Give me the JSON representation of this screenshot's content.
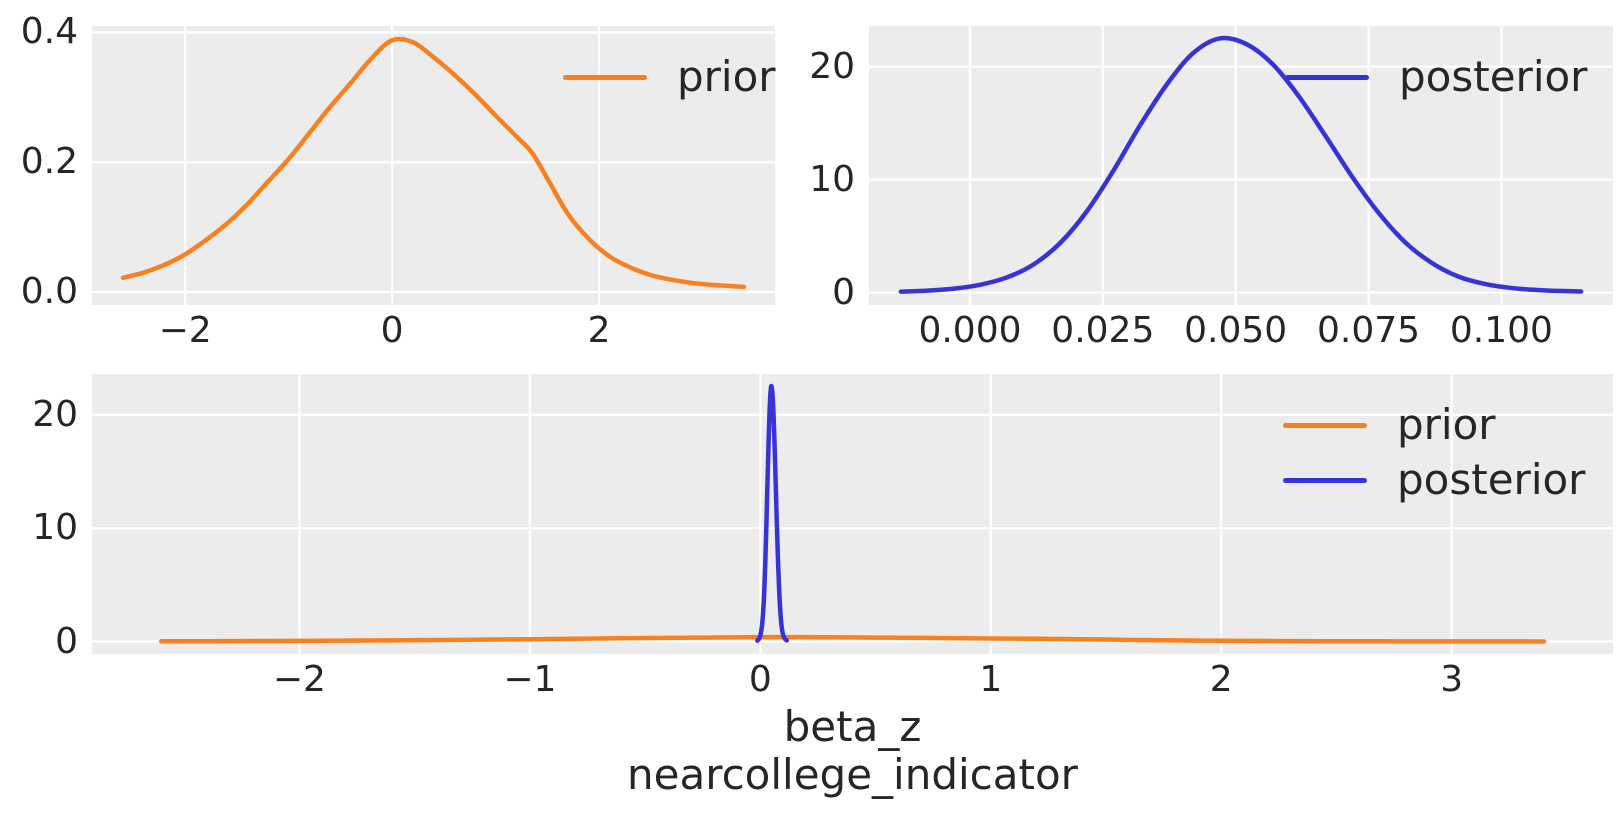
{
  "style": {
    "figure_bg": "#ffffff",
    "panel_bg": "#ececec",
    "grid_color": "#ffffff",
    "text_color": "#262626",
    "prior_color": "#f8801f",
    "posterior_color": "#3733d6",
    "line_width": 4.5,
    "grid_width": 2.2
  },
  "xlabel": {
    "line1": "beta_z",
    "line2": "nearcollege_indicator"
  },
  "chart_data": [
    {
      "type": "line",
      "name": "prior-marginal",
      "title": "",
      "xlabel": "",
      "ylabel": "",
      "grid": true,
      "legend_position": "upper right",
      "xlim": [
        -2.9,
        3.7
      ],
      "ylim": [
        -0.02,
        0.41
      ],
      "xticks": [
        {
          "v": -2,
          "label": "−2"
        },
        {
          "v": 0,
          "label": "0"
        },
        {
          "v": 2,
          "label": "2"
        }
      ],
      "yticks": [
        {
          "v": 0.0,
          "label": "0.0"
        },
        {
          "v": 0.2,
          "label": "0.2"
        },
        {
          "v": 0.4,
          "label": "0.4"
        }
      ],
      "legend": [
        {
          "label": "prior",
          "color_key": "prior_color"
        }
      ],
      "series": [
        {
          "name": "prior",
          "color_key": "prior_color",
          "x": [
            -2.6,
            -2.4,
            -2.2,
            -2.0,
            -1.8,
            -1.6,
            -1.4,
            -1.2,
            -1.0,
            -0.8,
            -0.6,
            -0.4,
            -0.2,
            0.0,
            0.2,
            0.4,
            0.6,
            0.8,
            1.0,
            1.2,
            1.35,
            1.5,
            1.7,
            1.9,
            2.1,
            2.3,
            2.5,
            2.7,
            2.9,
            3.1,
            3.4
          ],
          "y": [
            0.022,
            0.03,
            0.042,
            0.058,
            0.08,
            0.105,
            0.135,
            0.17,
            0.205,
            0.245,
            0.285,
            0.322,
            0.36,
            0.388,
            0.385,
            0.362,
            0.335,
            0.305,
            0.272,
            0.24,
            0.215,
            0.175,
            0.12,
            0.082,
            0.055,
            0.038,
            0.026,
            0.019,
            0.014,
            0.011,
            0.008
          ]
        }
      ]
    },
    {
      "type": "line",
      "name": "posterior-marginal",
      "title": "",
      "xlabel": "",
      "ylabel": "",
      "grid": true,
      "legend_position": "upper right",
      "xlim": [
        -0.019,
        0.121
      ],
      "ylim": [
        -1.1,
        23.6
      ],
      "xticks": [
        {
          "v": 0.0,
          "label": "0.000"
        },
        {
          "v": 0.025,
          "label": "0.025"
        },
        {
          "v": 0.05,
          "label": "0.050"
        },
        {
          "v": 0.075,
          "label": "0.075"
        },
        {
          "v": 0.1,
          "label": "0.100"
        }
      ],
      "yticks": [
        {
          "v": 0,
          "label": "0"
        },
        {
          "v": 10,
          "label": "10"
        },
        {
          "v": 20,
          "label": "20"
        }
      ],
      "legend": [
        {
          "label": "posterior",
          "color_key": "posterior_color"
        }
      ],
      "series": [
        {
          "name": "posterior",
          "color_key": "posterior_color",
          "x": [
            -0.013,
            -0.008,
            -0.003,
            0.002,
            0.007,
            0.012,
            0.017,
            0.022,
            0.027,
            0.032,
            0.037,
            0.042,
            0.047,
            0.052,
            0.057,
            0.062,
            0.067,
            0.072,
            0.077,
            0.082,
            0.087,
            0.092,
            0.097,
            0.102,
            0.108,
            0.115
          ],
          "y": [
            0.08,
            0.17,
            0.35,
            0.7,
            1.35,
            2.5,
            4.4,
            7.2,
            10.8,
            14.8,
            18.4,
            21.2,
            22.5,
            22.0,
            20.2,
            17.3,
            13.8,
            10.2,
            7.0,
            4.4,
            2.6,
            1.4,
            0.75,
            0.4,
            0.2,
            0.1
          ]
        }
      ]
    },
    {
      "type": "line",
      "name": "prior-posterior-overlay",
      "title": "",
      "xlabel": "beta_z nearcollege_indicator",
      "ylabel": "",
      "grid": true,
      "legend_position": "upper right",
      "xlim": [
        -2.9,
        3.7
      ],
      "ylim": [
        -1.1,
        23.6
      ],
      "xticks": [
        {
          "v": -2,
          "label": "−2"
        },
        {
          "v": -1,
          "label": "−1"
        },
        {
          "v": 0,
          "label": "0"
        },
        {
          "v": 1,
          "label": "1"
        },
        {
          "v": 2,
          "label": "2"
        },
        {
          "v": 3,
          "label": "3"
        }
      ],
      "yticks": [
        {
          "v": 0,
          "label": "0"
        },
        {
          "v": 10,
          "label": "10"
        },
        {
          "v": 20,
          "label": "20"
        }
      ],
      "legend": [
        {
          "label": "prior",
          "color_key": "prior_color"
        },
        {
          "label": "posterior",
          "color_key": "posterior_color"
        }
      ],
      "series": [
        {
          "name": "prior",
          "color_key": "prior_color",
          "x": [
            -2.6,
            -2.4,
            -2.2,
            -2.0,
            -1.8,
            -1.6,
            -1.4,
            -1.2,
            -1.0,
            -0.8,
            -0.6,
            -0.4,
            -0.2,
            0.0,
            0.2,
            0.4,
            0.6,
            0.8,
            1.0,
            1.2,
            1.35,
            1.5,
            1.7,
            1.9,
            2.1,
            2.3,
            2.5,
            2.7,
            2.9,
            3.1,
            3.4
          ],
          "y": [
            0.022,
            0.03,
            0.042,
            0.058,
            0.08,
            0.105,
            0.135,
            0.17,
            0.205,
            0.245,
            0.285,
            0.322,
            0.36,
            0.388,
            0.385,
            0.362,
            0.335,
            0.305,
            0.272,
            0.24,
            0.215,
            0.175,
            0.12,
            0.082,
            0.055,
            0.038,
            0.026,
            0.019,
            0.014,
            0.011,
            0.008
          ]
        },
        {
          "name": "posterior",
          "color_key": "posterior_color",
          "x": [
            -0.013,
            -0.008,
            -0.003,
            0.002,
            0.007,
            0.012,
            0.017,
            0.022,
            0.027,
            0.032,
            0.037,
            0.042,
            0.047,
            0.052,
            0.057,
            0.062,
            0.067,
            0.072,
            0.077,
            0.082,
            0.087,
            0.092,
            0.097,
            0.102,
            0.108,
            0.115
          ],
          "y": [
            0.08,
            0.17,
            0.35,
            0.7,
            1.35,
            2.5,
            4.4,
            7.2,
            10.8,
            14.8,
            18.4,
            21.2,
            22.5,
            22.0,
            20.2,
            17.3,
            13.8,
            10.2,
            7.0,
            4.4,
            2.6,
            1.4,
            0.75,
            0.4,
            0.2,
            0.1
          ]
        }
      ]
    }
  ]
}
